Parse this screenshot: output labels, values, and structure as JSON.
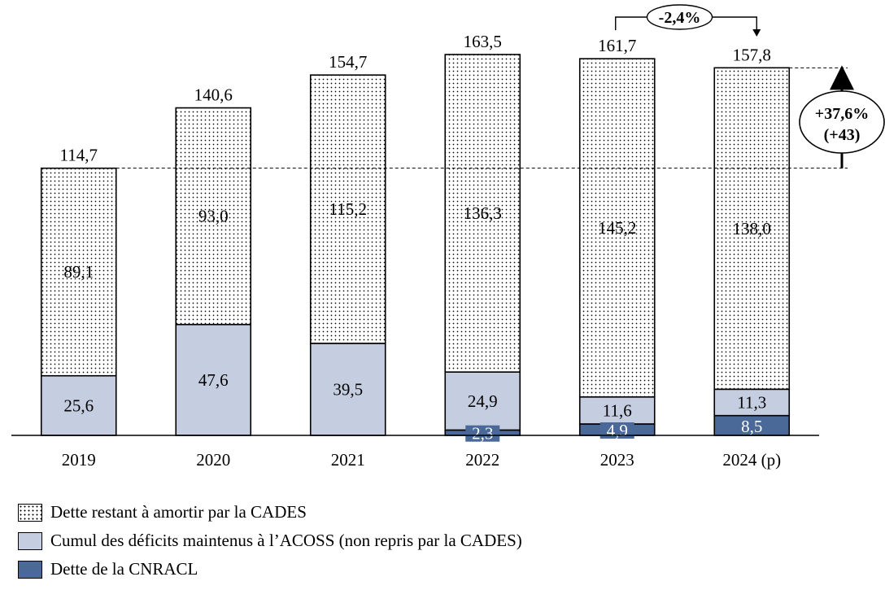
{
  "colors": {
    "cades": "#ffffff",
    "acoss": "#c5cee0",
    "cnracl": "#4a6898",
    "axis": "#000000"
  },
  "chart_data": {
    "type": "bar",
    "stacked": true,
    "categories": [
      "2019",
      "2020",
      "2021",
      "2022",
      "2023",
      "2024 (p)"
    ],
    "series": [
      {
        "name": "Dette de la CNRACL",
        "values": [
          0,
          0,
          0,
          2.3,
          4.9,
          8.5
        ],
        "labels": [
          "",
          "",
          "",
          "2,3",
          "4,9",
          "8,5"
        ]
      },
      {
        "name": "Cumul des déficits maintenus à l’ACOSS (non repris par la CADES)",
        "values": [
          25.6,
          47.6,
          39.5,
          24.9,
          11.6,
          11.3
        ],
        "labels": [
          "25,6",
          "47,6",
          "39,5",
          "24,9",
          "11,6",
          "11,3"
        ]
      },
      {
        "name": "Dette restant à amortir par la CADES",
        "values": [
          89.1,
          93.0,
          115.2,
          136.3,
          145.2,
          138.0
        ],
        "labels": [
          "89,1",
          "93,0",
          "115,2",
          "136,3",
          "145,2",
          "138,0"
        ]
      }
    ],
    "totals": [
      114.7,
      140.6,
      154.7,
      163.5,
      161.7,
      157.8
    ],
    "total_labels": [
      "114,7",
      "140,6",
      "154,7",
      "163,5",
      "161,7",
      "157,8"
    ],
    "ylim": [
      0,
      170
    ],
    "annotations": {
      "change_2023_2024": "-2,4%",
      "change_2019_2024_pct": "+37,6%",
      "change_2019_2024_abs": "(+43)"
    },
    "legend_order": [
      2,
      1,
      0
    ]
  }
}
